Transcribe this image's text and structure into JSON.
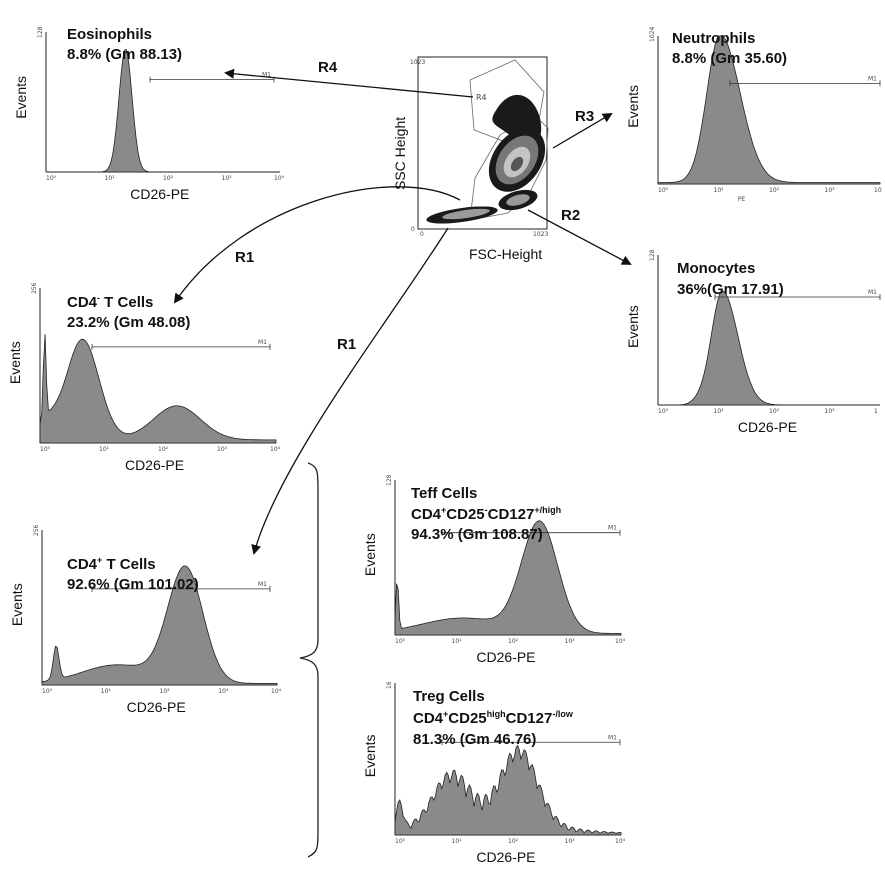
{
  "scatter": {
    "x_label": "FSC-Height",
    "y_label": "SSC Height",
    "x_ticks": [
      "0",
      "1023"
    ],
    "y_ticks": [
      "0",
      "1023"
    ],
    "region_label": "R4"
  },
  "gates": {
    "r1": "R1",
    "r2": "R2",
    "r3": "R3",
    "r4": "R4"
  },
  "panels": {
    "eosinophils": {
      "line1": "Eosinophils",
      "line2": "8.8% (Gm 88.13)",
      "ylabel": "Events",
      "xlabel": "CD26-PE",
      "ymax": "128",
      "xticks": [
        "10⁰",
        "10¹",
        "10²",
        "10³",
        "10⁴"
      ],
      "marker": "M1"
    },
    "neutrophils": {
      "line1": "Neutrophils",
      "line2": "8.8% (Gm 35.60)",
      "ylabel": "Events",
      "xlabel": "PE",
      "ymax": "1024",
      "xticks": [
        "10⁰",
        "10¹",
        "10²",
        "10³",
        "10"
      ],
      "marker": "M1"
    },
    "monocytes": {
      "line1": "Monocytes",
      "line2": "36%(Gm 17.91)",
      "ylabel": "Events",
      "xlabel": "CD26-PE",
      "ymax": "128",
      "xticks": [
        "10⁰",
        "10¹",
        "10²",
        "10³",
        "1"
      ],
      "marker": "M1"
    },
    "cd4neg": {
      "line1_main": "CD4",
      "line1_sup": "-",
      "line1_rest": " T Cells",
      "line2": "23.2% (Gm 48.08)",
      "ylabel": "Events",
      "xlabel": "CD26-PE",
      "ymax": "256",
      "xticks": [
        "10⁰",
        "10¹",
        "10²",
        "10³",
        "10⁴"
      ],
      "marker": "M1"
    },
    "cd4pos": {
      "line1_main": "CD4",
      "line1_sup": "+",
      "line1_rest": " T Cells",
      "line2": "92.6% (Gm 101.02)",
      "ylabel": "Events",
      "xlabel": "CD26-PE",
      "ymax": "256",
      "xticks": [
        "10⁰",
        "10¹",
        "10²",
        "10³",
        "10⁴"
      ],
      "marker": "M1"
    },
    "teff": {
      "line1": "Teff Cells",
      "l2_a": "CD4",
      "l2_a_sup": "+",
      "l2_b": "CD25",
      "l2_b_sup": "-",
      "l2_c": "CD127",
      "l2_c_sup": "+/high",
      "line3": "94.3% (Gm 108.87)",
      "ylabel": "Events",
      "xlabel": "CD26-PE",
      "ymax": "128",
      "xticks": [
        "10⁰",
        "10¹",
        "10²",
        "10³",
        "10⁴"
      ],
      "marker": "M1"
    },
    "treg": {
      "line1": "Treg Cells",
      "l2_a": "CD4",
      "l2_a_sup": "+",
      "l2_b": "CD25",
      "l2_b_sup": "high",
      "l2_c": "CD127",
      "l2_c_sup": "-/low",
      "line3": "81.3% (Gm 46.76)",
      "ylabel": "Events",
      "xlabel": "CD26-PE",
      "ymax": "16",
      "xticks": [
        "10⁰",
        "10¹",
        "10²",
        "10³",
        "10⁴"
      ],
      "marker": "M1"
    }
  },
  "colors": {
    "fill": "#8a8a8a",
    "stroke": "#222222",
    "scatter_dark": "#1a1a1a",
    "scatter_mid": "#777777",
    "scatter_light": "#c4c4c4"
  }
}
